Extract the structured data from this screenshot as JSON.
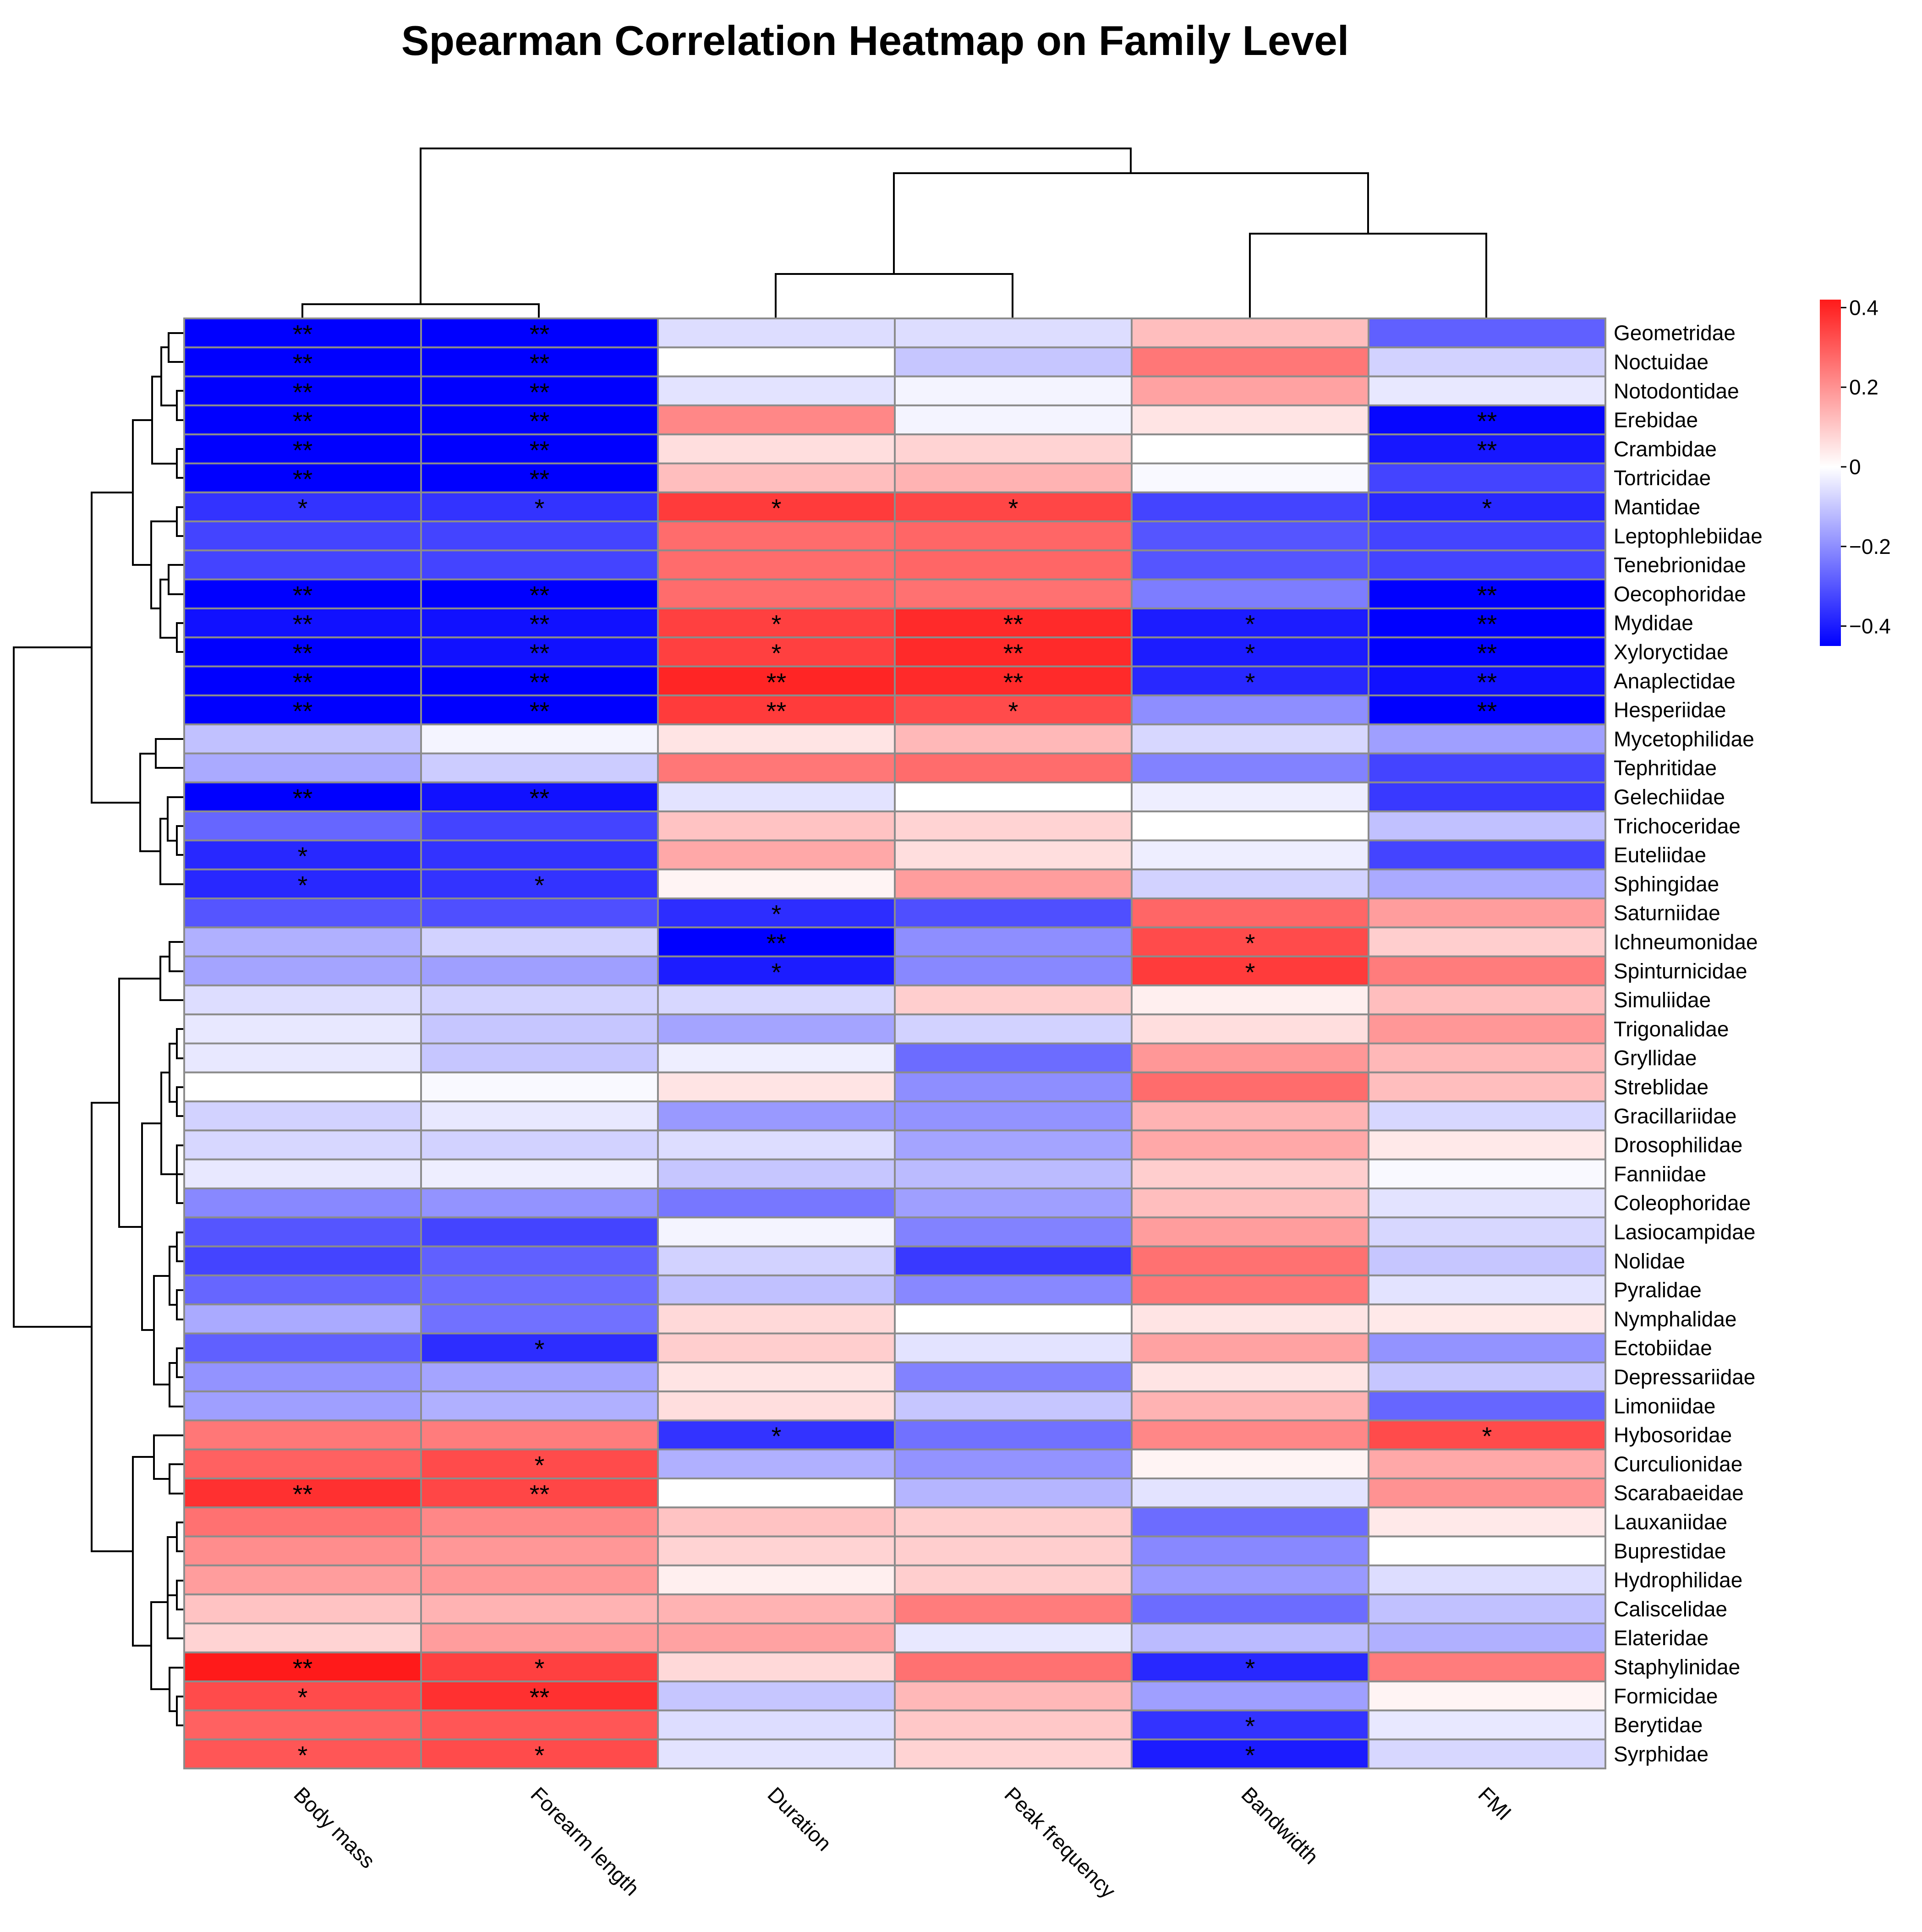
{
  "chart_data": {
    "type": "heatmap",
    "title": "Spearman Correlation Heatmap on Family Level",
    "columns": [
      "Body mass",
      "Forearm length",
      "Duration",
      "Peak frequency",
      "Bandwidth",
      "FMI"
    ],
    "rows": [
      "Geometridae",
      "Noctuidae",
      "Notodontidae",
      "Erebidae",
      "Crambidae",
      "Tortricidae",
      "Mantidae",
      "Leptophlebiidae",
      "Tenebrionidae",
      "Oecophoridae",
      "Mydidae",
      "Xyloryctidae",
      "Anaplectidae",
      "Hesperiidae",
      "Mycetophilidae",
      "Tephritidae",
      "Gelechiidae",
      "Trichoceridae",
      "Euteliidae",
      "Sphingidae",
      "Saturniidae",
      "Ichneumonidae",
      "Spinturnicidae",
      "Simuliidae",
      "Trigonalidae",
      "Gryllidae",
      "Streblidae",
      "Gracillariidae",
      "Drosophilidae",
      "Fanniidae",
      "Coleophoridae",
      "Lasiocampidae",
      "Nolidae",
      "Pyralidae",
      "Nymphalidae",
      "Ectobiidae",
      "Depressariidae",
      "Limoniidae",
      "Hybosoridae",
      "Curculionidae",
      "Scarabaeidae",
      "Lauxaniidae",
      "Buprestidae",
      "Hydrophilidae",
      "Caliscelidae",
      "Elateridae",
      "Staphylinidae",
      "Formicidae",
      "Berytidae",
      "Syrphidae"
    ],
    "values": [
      [
        -0.45,
        -0.45,
        -0.06,
        -0.06,
        0.12,
        -0.28
      ],
      [
        -0.45,
        -0.45,
        0.0,
        -0.1,
        0.25,
        -0.08
      ],
      [
        -0.45,
        -0.45,
        -0.05,
        -0.02,
        0.17,
        -0.04
      ],
      [
        -0.45,
        -0.45,
        0.22,
        -0.02,
        0.05,
        -0.44
      ],
      [
        -0.45,
        -0.45,
        0.06,
        0.08,
        0.0,
        -0.41
      ],
      [
        -0.45,
        -0.45,
        0.12,
        0.14,
        -0.01,
        -0.33
      ],
      [
        -0.36,
        -0.36,
        0.36,
        0.34,
        -0.33,
        -0.38
      ],
      [
        -0.33,
        -0.33,
        0.27,
        0.28,
        -0.3,
        -0.33
      ],
      [
        -0.33,
        -0.33,
        0.27,
        0.28,
        -0.3,
        -0.33
      ],
      [
        -0.45,
        -0.45,
        0.27,
        0.26,
        -0.23,
        -0.45
      ],
      [
        -0.42,
        -0.42,
        0.35,
        0.39,
        -0.4,
        -0.45
      ],
      [
        -0.45,
        -0.42,
        0.35,
        0.39,
        -0.4,
        -0.45
      ],
      [
        -0.45,
        -0.45,
        0.4,
        0.39,
        -0.38,
        -0.42
      ],
      [
        -0.45,
        -0.45,
        0.36,
        0.33,
        -0.2,
        -0.45
      ],
      [
        -0.11,
        -0.02,
        0.05,
        0.13,
        -0.07,
        -0.17
      ],
      [
        -0.15,
        -0.09,
        0.25,
        0.27,
        -0.22,
        -0.33
      ],
      [
        -0.45,
        -0.42,
        -0.05,
        0.0,
        -0.03,
        -0.35
      ],
      [
        -0.27,
        -0.33,
        0.11,
        0.08,
        0.0,
        -0.11
      ],
      [
        -0.38,
        -0.36,
        0.16,
        0.06,
        -0.03,
        -0.33
      ],
      [
        -0.38,
        -0.36,
        0.02,
        0.18,
        -0.08,
        -0.15
      ],
      [
        -0.3,
        -0.31,
        -0.37,
        -0.31,
        0.28,
        0.18
      ],
      [
        -0.14,
        -0.08,
        -0.45,
        -0.2,
        0.33,
        0.09
      ],
      [
        -0.16,
        -0.17,
        -0.4,
        -0.21,
        0.36,
        0.24
      ],
      [
        -0.06,
        -0.08,
        -0.07,
        0.09,
        0.03,
        0.12
      ],
      [
        -0.04,
        -0.1,
        -0.16,
        -0.08,
        0.06,
        0.19
      ],
      [
        -0.04,
        -0.1,
        -0.03,
        -0.26,
        0.19,
        0.13
      ],
      [
        0.0,
        -0.01,
        0.05,
        -0.2,
        0.27,
        0.12
      ],
      [
        -0.08,
        -0.04,
        -0.18,
        -0.19,
        0.14,
        -0.07
      ],
      [
        -0.07,
        -0.08,
        -0.06,
        -0.16,
        0.16,
        0.04
      ],
      [
        -0.04,
        -0.03,
        -0.1,
        -0.12,
        0.09,
        -0.01
      ],
      [
        -0.21,
        -0.19,
        -0.24,
        -0.17,
        0.12,
        -0.05
      ],
      [
        -0.3,
        -0.33,
        -0.02,
        -0.22,
        0.18,
        -0.07
      ],
      [
        -0.33,
        -0.28,
        -0.08,
        -0.35,
        0.26,
        -0.1
      ],
      [
        -0.27,
        -0.26,
        -0.11,
        -0.21,
        0.25,
        -0.05
      ],
      [
        -0.15,
        -0.25,
        0.07,
        0.0,
        0.05,
        0.04
      ],
      [
        -0.28,
        -0.37,
        0.09,
        -0.05,
        0.17,
        -0.19
      ],
      [
        -0.19,
        -0.16,
        0.05,
        -0.22,
        0.05,
        -0.1
      ],
      [
        -0.17,
        -0.14,
        0.06,
        -0.1,
        0.14,
        -0.27
      ],
      [
        0.25,
        0.24,
        -0.36,
        -0.25,
        0.22,
        0.33
      ],
      [
        0.29,
        0.33,
        -0.14,
        -0.19,
        0.02,
        0.16
      ],
      [
        0.38,
        0.34,
        0.0,
        -0.13,
        -0.05,
        0.2
      ],
      [
        0.26,
        0.22,
        0.11,
        0.09,
        -0.26,
        0.04
      ],
      [
        0.21,
        0.19,
        0.08,
        0.09,
        -0.21,
        0.0
      ],
      [
        0.18,
        0.19,
        0.03,
        0.09,
        -0.18,
        -0.06
      ],
      [
        0.11,
        0.14,
        0.14,
        0.24,
        -0.26,
        -0.11
      ],
      [
        0.08,
        0.18,
        0.17,
        -0.04,
        -0.12,
        -0.14
      ],
      [
        0.42,
        0.35,
        0.07,
        0.26,
        -0.38,
        0.24
      ],
      [
        0.33,
        0.38,
        -0.1,
        0.13,
        -0.17,
        0.02
      ],
      [
        0.29,
        0.31,
        -0.06,
        0.1,
        -0.36,
        -0.04
      ],
      [
        0.31,
        0.33,
        -0.05,
        0.08,
        -0.4,
        -0.07
      ]
    ],
    "significance": [
      [
        "**",
        "**",
        "",
        "",
        "",
        ""
      ],
      [
        "**",
        "**",
        "",
        "",
        "",
        ""
      ],
      [
        "**",
        "**",
        "",
        "",
        "",
        ""
      ],
      [
        "**",
        "**",
        "",
        "",
        "",
        "**"
      ],
      [
        "**",
        "**",
        "",
        "",
        "",
        "**"
      ],
      [
        "**",
        "**",
        "",
        "",
        "",
        ""
      ],
      [
        "*",
        "*",
        "*",
        "*",
        "",
        "*"
      ],
      [
        "",
        "",
        "",
        "",
        "",
        ""
      ],
      [
        "",
        "",
        "",
        "",
        "",
        ""
      ],
      [
        "**",
        "**",
        "",
        "",
        "",
        "**"
      ],
      [
        "**",
        "**",
        "*",
        "**",
        "*",
        "**"
      ],
      [
        "**",
        "**",
        "*",
        "**",
        "*",
        "**"
      ],
      [
        "**",
        "**",
        "**",
        "**",
        "*",
        "**"
      ],
      [
        "**",
        "**",
        "**",
        "*",
        "",
        "**"
      ],
      [
        "",
        "",
        "",
        "",
        "",
        ""
      ],
      [
        "",
        "",
        "",
        "",
        "",
        ""
      ],
      [
        "**",
        "**",
        "",
        "",
        "",
        ""
      ],
      [
        "",
        "",
        "",
        "",
        "",
        ""
      ],
      [
        "*",
        "",
        "",
        "",
        "",
        ""
      ],
      [
        "*",
        "*",
        "",
        "",
        "",
        ""
      ],
      [
        "",
        "",
        "*",
        "",
        "",
        ""
      ],
      [
        "",
        "",
        "**",
        "",
        "*",
        ""
      ],
      [
        "",
        "",
        "*",
        "",
        "*",
        ""
      ],
      [
        "",
        "",
        "",
        "",
        "",
        ""
      ],
      [
        "",
        "",
        "",
        "",
        "",
        ""
      ],
      [
        "",
        "",
        "",
        "",
        "",
        ""
      ],
      [
        "",
        "",
        "",
        "",
        "",
        ""
      ],
      [
        "",
        "",
        "",
        "",
        "",
        ""
      ],
      [
        "",
        "",
        "",
        "",
        "",
        ""
      ],
      [
        "",
        "",
        "",
        "",
        "",
        ""
      ],
      [
        "",
        "",
        "",
        "",
        "",
        ""
      ],
      [
        "",
        "",
        "",
        "",
        "",
        ""
      ],
      [
        "",
        "",
        "",
        "",
        "",
        ""
      ],
      [
        "",
        "",
        "",
        "",
        "",
        ""
      ],
      [
        "",
        "",
        "",
        "",
        "",
        ""
      ],
      [
        "",
        "*",
        "",
        "",
        "",
        ""
      ],
      [
        "",
        "",
        "",
        "",
        "",
        ""
      ],
      [
        "",
        "",
        "",
        "",
        "",
        ""
      ],
      [
        "",
        "",
        "*",
        "",
        "",
        "*"
      ],
      [
        "",
        "*",
        "",
        "",
        "",
        ""
      ],
      [
        "**",
        "**",
        "",
        "",
        "",
        ""
      ],
      [
        "",
        "",
        "",
        "",
        "",
        ""
      ],
      [
        "",
        "",
        "",
        "",
        "",
        ""
      ],
      [
        "",
        "",
        "",
        "",
        "",
        ""
      ],
      [
        "",
        "",
        "",
        "",
        "",
        ""
      ],
      [
        "",
        "",
        "",
        "",
        "",
        ""
      ],
      [
        "**",
        "*",
        "",
        "",
        "*",
        ""
      ],
      [
        "*",
        "**",
        "",
        "",
        "",
        ""
      ],
      [
        "",
        "",
        "",
        "",
        "*",
        ""
      ],
      [
        "*",
        "*",
        "",
        "",
        "*",
        ""
      ]
    ],
    "color_scale": {
      "min": -0.45,
      "max": 0.42,
      "low_color": "#0000ff",
      "mid_color": "#ffffff",
      "high_color": "#ff1a1a",
      "ticks": [
        0.4,
        0.2,
        0,
        -0.2,
        -0.4
      ]
    },
    "legend": "right"
  }
}
